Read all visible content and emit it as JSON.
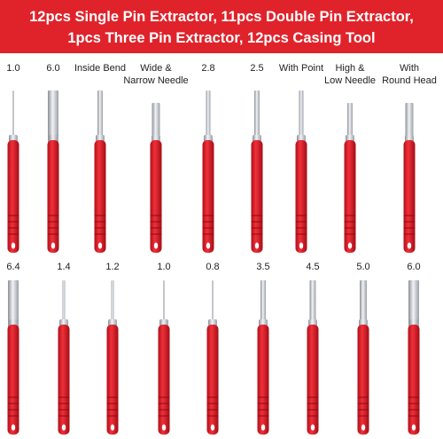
{
  "header": {
    "lines": [
      "12pcs Single Pin Extractor, 11pcs Double Pin Extractor,",
      "1pcs Three Pin Extractor, 12pcs Casing Tool"
    ]
  },
  "top_row": [
    [
      "1.0"
    ],
    [
      "6.0"
    ],
    [
      "Inside Bend"
    ],
    [
      "Wide &",
      "Narrow Needle"
    ],
    [
      "2.8"
    ],
    [
      "2.5"
    ],
    [
      "With Point"
    ],
    [
      "High &",
      "Low Needle"
    ],
    [
      "With",
      "Round Head"
    ]
  ],
  "bottom_row": [
    [
      "6.4"
    ],
    [
      "1.4"
    ],
    [
      "1.2"
    ],
    [
      "1.0"
    ],
    [
      "0.8"
    ],
    [
      "3.5"
    ],
    [
      "4.5"
    ],
    [
      "5.0"
    ],
    [
      "6.0"
    ]
  ]
}
